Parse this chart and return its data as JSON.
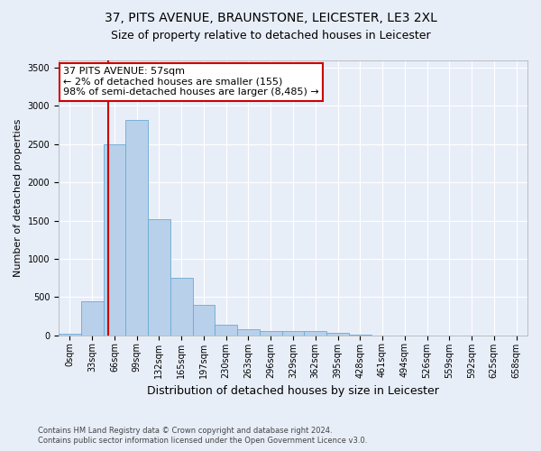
{
  "title": "37, PITS AVENUE, BRAUNSTONE, LEICESTER, LE3 2XL",
  "subtitle": "Size of property relative to detached houses in Leicester",
  "xlabel": "Distribution of detached houses by size in Leicester",
  "ylabel": "Number of detached properties",
  "bar_labels": [
    "0sqm",
    "33sqm",
    "66sqm",
    "99sqm",
    "132sqm",
    "165sqm",
    "197sqm",
    "230sqm",
    "263sqm",
    "296sqm",
    "329sqm",
    "362sqm",
    "395sqm",
    "428sqm",
    "461sqm",
    "494sqm",
    "526sqm",
    "559sqm",
    "592sqm",
    "625sqm",
    "658sqm"
  ],
  "bar_values": [
    20,
    450,
    2500,
    2820,
    1520,
    750,
    400,
    140,
    80,
    60,
    60,
    60,
    30,
    10,
    0,
    0,
    0,
    0,
    0,
    0,
    0
  ],
  "bar_color": "#b8d0ea",
  "bar_edge_color": "#6aaad4",
  "property_line_color": "#cc0000",
  "annotation_text": "37 PITS AVENUE: 57sqm\n← 2% of detached houses are smaller (155)\n98% of semi-detached houses are larger (8,485) →",
  "annotation_box_color": "#cc0000",
  "ylim": [
    0,
    3600
  ],
  "yticks": [
    0,
    500,
    1000,
    1500,
    2000,
    2500,
    3000,
    3500
  ],
  "footer_line1": "Contains HM Land Registry data © Crown copyright and database right 2024.",
  "footer_line2": "Contains public sector information licensed under the Open Government Licence v3.0.",
  "bg_color": "#e8eef8",
  "fig_bg_color": "#e8eef8",
  "grid_color": "#ffffff",
  "title_fontsize": 10,
  "subtitle_fontsize": 9,
  "ylabel_fontsize": 8,
  "xlabel_fontsize": 9,
  "tick_fontsize": 7,
  "footer_fontsize": 6,
  "annotation_fontsize": 8
}
